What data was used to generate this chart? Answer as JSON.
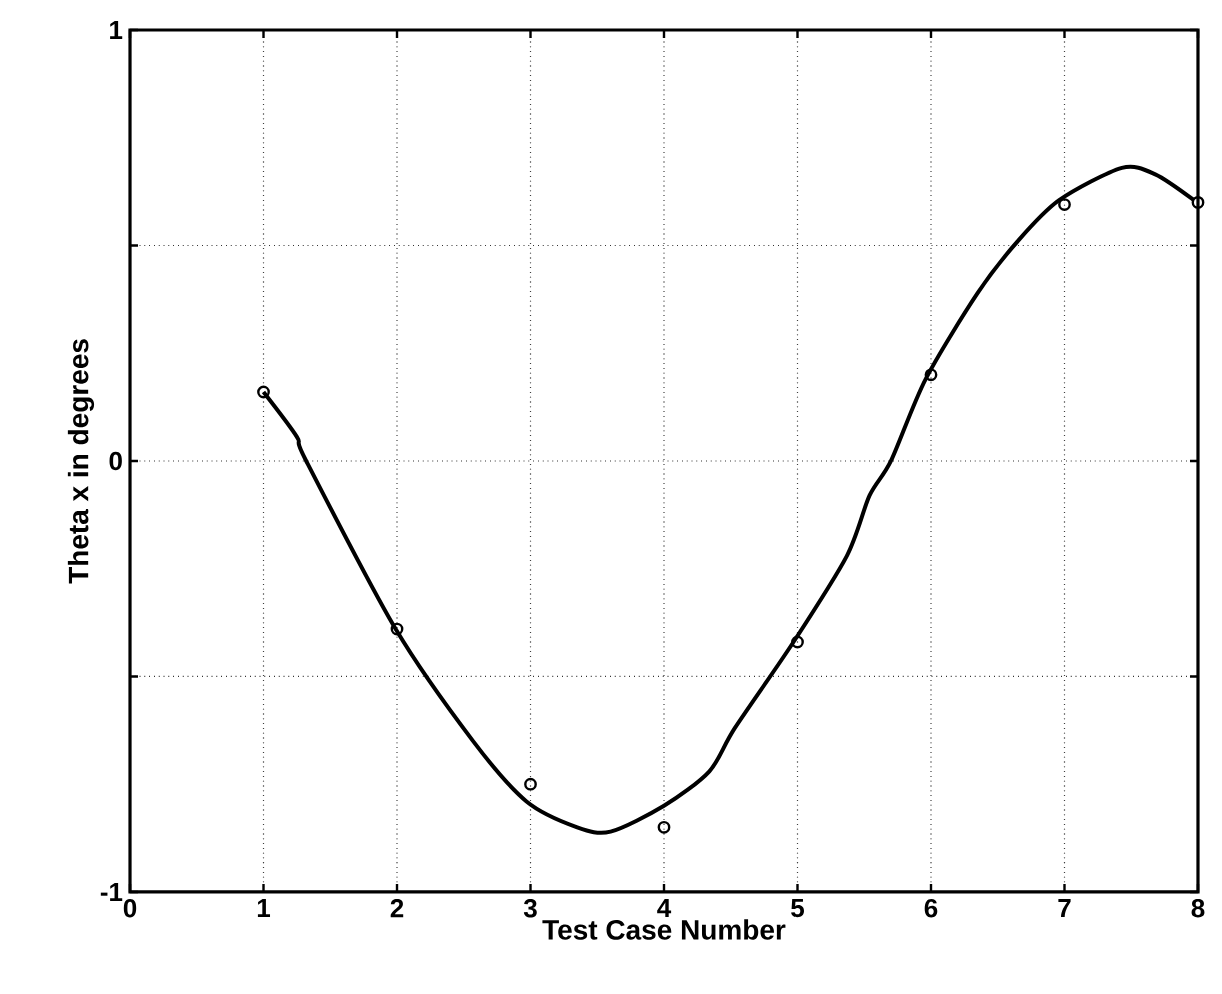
{
  "chart_data": {
    "type": "scatter",
    "xlabel": "Test Case Number",
    "ylabel": "Theta x in degrees",
    "xlim": [
      0,
      8
    ],
    "ylim": [
      -1,
      1
    ],
    "xticks": [
      0,
      1,
      2,
      3,
      4,
      5,
      6,
      7,
      8
    ],
    "yticks": [
      -1,
      {
        "value": -0.5,
        "label": null
      },
      0,
      {
        "value": 0.5,
        "label": null
      },
      1
    ],
    "grid": true,
    "series": [
      {
        "marker": "circle",
        "color": "#000000",
        "x": [
          1,
          2,
          3,
          4,
          5,
          6,
          7,
          8
        ],
        "values": [
          0.16,
          -0.39,
          -0.75,
          -0.85,
          -0.42,
          0.2,
          0.595,
          0.6
        ]
      },
      {
        "type": "line",
        "marker": "none",
        "line_style": "solid",
        "color": "#000000",
        "x": [
          1,
          1.25,
          1.32,
          1.99,
          2.57,
          2.97,
          3.35,
          3.6,
          4.0,
          4.34,
          4.53,
          4.97,
          5.37,
          5.54,
          5.7,
          5.96,
          6.35,
          6.65,
          6.96,
          7.43,
          7.68,
          7.97
        ],
        "values": [
          0.16,
          0.056,
          0,
          -0.39,
          -0.65,
          -0.79,
          -0.85,
          -0.86,
          -0.8,
          -0.72,
          -0.62,
          -0.42,
          -0.22,
          -0.08,
          0,
          0.19,
          0.39,
          0.51,
          0.605,
          0.68,
          0.665,
          0.605
        ]
      }
    ]
  }
}
